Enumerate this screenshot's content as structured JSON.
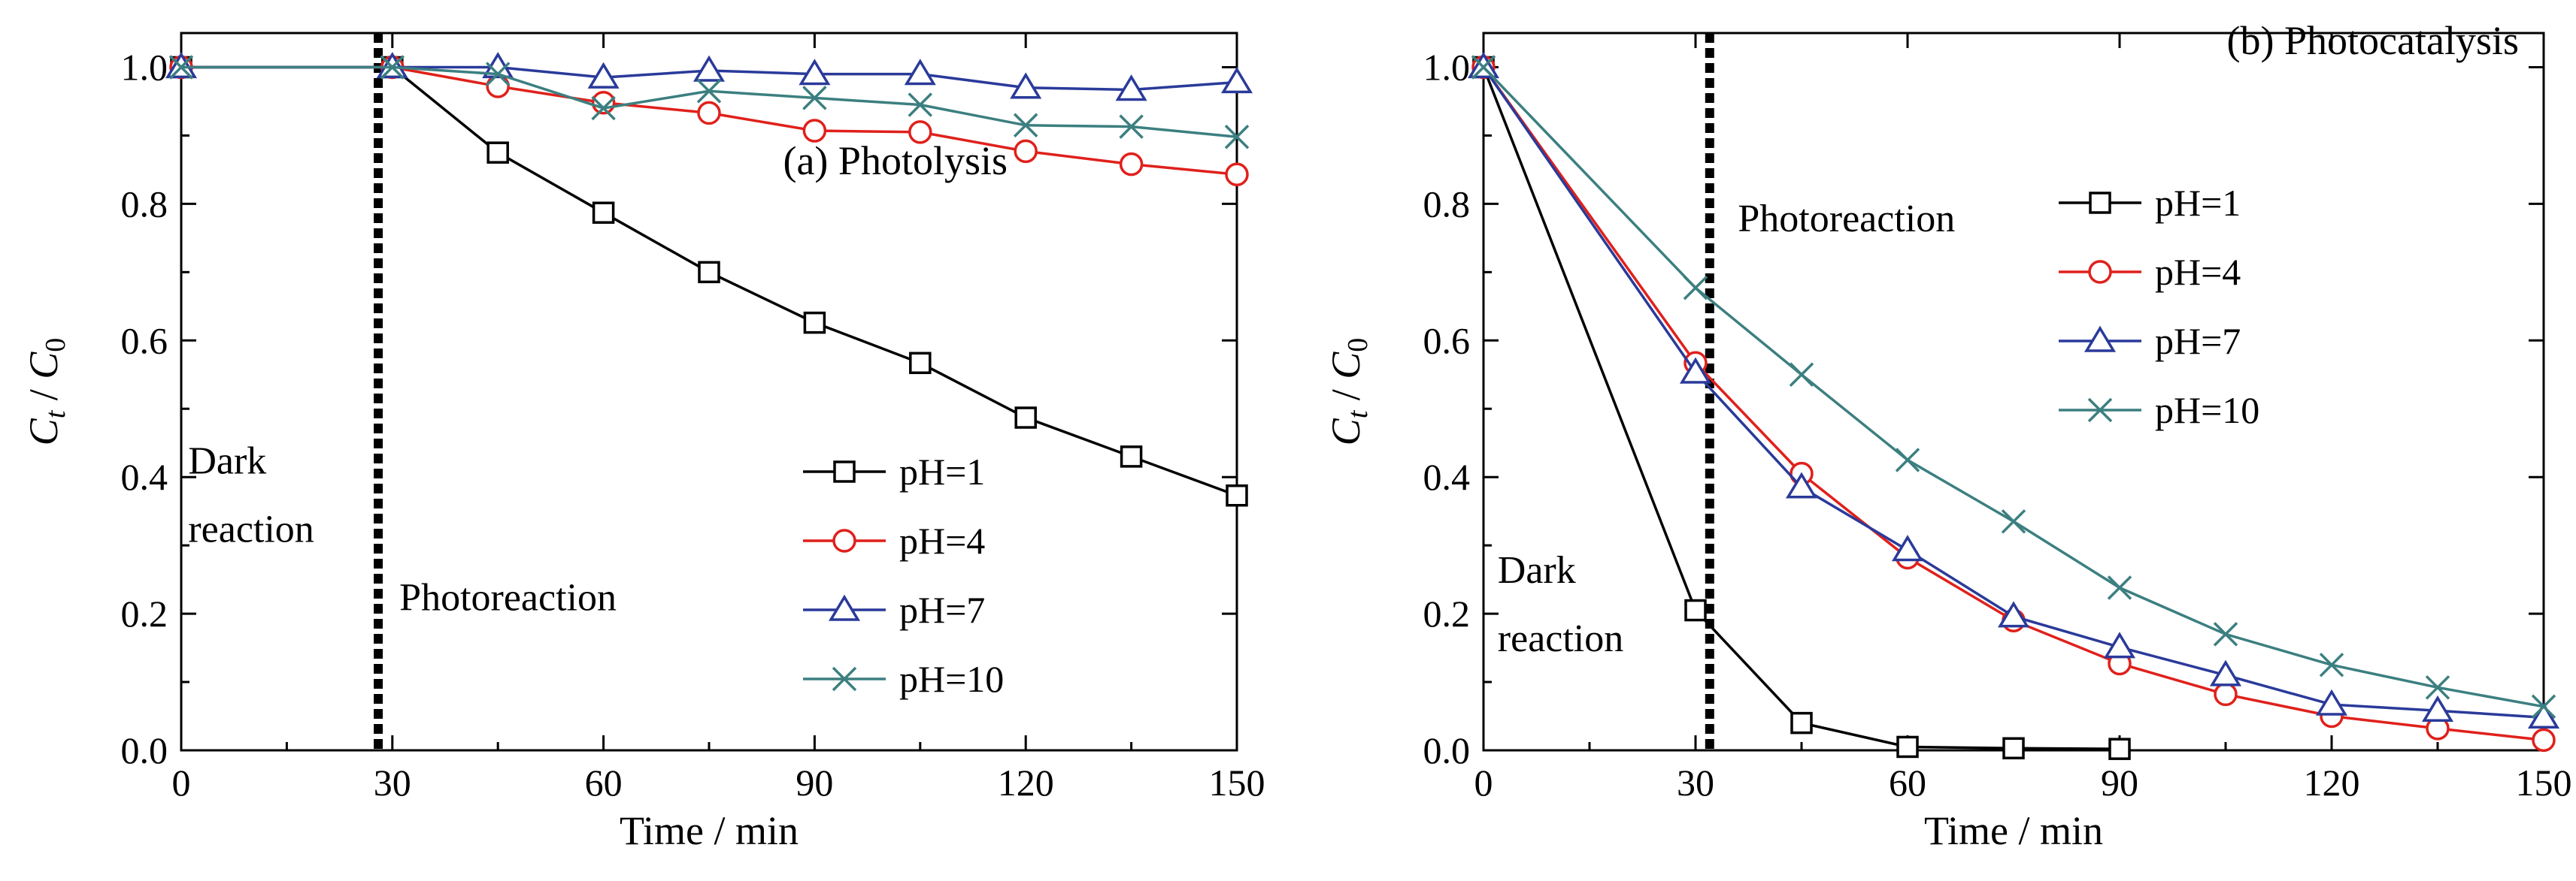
{
  "chart_data": [
    {
      "type": "line",
      "title": "(a) Photolysis",
      "xlabel": "Time / min",
      "ylabel_main": "C",
      "ylabel_main_sub": "t",
      "ylabel_sep": " / ",
      "ylabel_ref": "C",
      "ylabel_ref_sub": "0",
      "xlim": [
        0,
        150
      ],
      "ylim": [
        0,
        1.05
      ],
      "xticks": [
        0,
        30,
        60,
        90,
        120,
        150
      ],
      "xtick_labels": [
        "0",
        "30",
        "60",
        "90",
        "120",
        "150"
      ],
      "yticks": [
        0,
        0.2,
        0.4,
        0.6,
        0.8,
        1.0
      ],
      "ytick_labels": [
        "0.0",
        "0.2",
        "0.4",
        "0.6",
        "0.8",
        "1.0"
      ],
      "divider_x": 28,
      "annotations": [
        {
          "text": "Dark",
          "x": 1,
          "y": 0.405
        },
        {
          "text": "reaction",
          "x": 1,
          "y": 0.305
        },
        {
          "text": "Photoreaction",
          "x": 31,
          "y": 0.205
        }
      ],
      "legend_position": "bottom-right",
      "series": [
        {
          "name": "pH=1",
          "color": "#000000",
          "marker": "square",
          "x": [
            0,
            30,
            45,
            60,
            75,
            90,
            105,
            120,
            135,
            150
          ],
          "y": [
            1.0,
            1.0,
            0.875,
            0.787,
            0.7,
            0.626,
            0.567,
            0.487,
            0.43,
            0.373
          ]
        },
        {
          "name": "pH=4",
          "color": "#e0201b",
          "marker": "circle",
          "x": [
            0,
            30,
            45,
            60,
            75,
            90,
            105,
            120,
            135,
            150
          ],
          "y": [
            1.0,
            1.0,
            0.972,
            0.948,
            0.933,
            0.907,
            0.905,
            0.877,
            0.858,
            0.843
          ]
        },
        {
          "name": "pH=7",
          "color": "#2a3a9a",
          "marker": "triangle",
          "x": [
            0,
            30,
            45,
            60,
            75,
            90,
            105,
            120,
            135,
            150
          ],
          "y": [
            1.0,
            1.0,
            1.0,
            0.985,
            0.995,
            0.99,
            0.99,
            0.97,
            0.967,
            0.978
          ]
        },
        {
          "name": "pH=10",
          "color": "#3c7f80",
          "marker": "x",
          "x": [
            0,
            30,
            45,
            60,
            75,
            90,
            105,
            120,
            135,
            150
          ],
          "y": [
            1.0,
            1.0,
            0.99,
            0.94,
            0.965,
            0.955,
            0.945,
            0.915,
            0.913,
            0.898
          ]
        }
      ]
    },
    {
      "type": "line",
      "title": "(b) Photocatalysis",
      "xlabel": "Time / min",
      "ylabel_main": "C",
      "ylabel_main_sub": "t",
      "ylabel_sep": " / ",
      "ylabel_ref": "C",
      "ylabel_ref_sub": "0",
      "xlim": [
        0,
        150
      ],
      "ylim": [
        0,
        1.05
      ],
      "xticks": [
        0,
        30,
        60,
        90,
        120,
        150
      ],
      "xtick_labels": [
        "0",
        "30",
        "60",
        "90",
        "120",
        "150"
      ],
      "yticks": [
        0,
        0.2,
        0.4,
        0.6,
        0.8,
        1.0
      ],
      "ytick_labels": [
        "0.0",
        "0.2",
        "0.4",
        "0.6",
        "0.8",
        "1.0"
      ],
      "divider_x": 32,
      "annotations": [
        {
          "text": "Dark",
          "x": 2,
          "y": 0.245
        },
        {
          "text": "reaction",
          "x": 2,
          "y": 0.145
        },
        {
          "text": "Photoreaction",
          "x": 36,
          "y": 0.76
        }
      ],
      "legend_position": "center-right",
      "series": [
        {
          "name": "pH=1",
          "color": "#000000",
          "marker": "square",
          "x": [
            0,
            30,
            45,
            60,
            75,
            90
          ],
          "y": [
            1.0,
            0.205,
            0.04,
            0.005,
            0.003,
            0.002
          ]
        },
        {
          "name": "pH=4",
          "color": "#e0201b",
          "marker": "circle",
          "x": [
            0,
            30,
            45,
            60,
            75,
            90,
            105,
            120,
            135,
            150
          ],
          "y": [
            1.0,
            0.567,
            0.405,
            0.282,
            0.19,
            0.127,
            0.082,
            0.05,
            0.032,
            0.015
          ]
        },
        {
          "name": "pH=7",
          "color": "#2a3a9a",
          "marker": "triangle",
          "x": [
            0,
            30,
            45,
            60,
            75,
            90,
            105,
            120,
            135,
            150
          ],
          "y": [
            1.0,
            0.553,
            0.385,
            0.293,
            0.196,
            0.151,
            0.11,
            0.067,
            0.058,
            0.048
          ]
        },
        {
          "name": "pH=10",
          "color": "#3c7f80",
          "marker": "x",
          "x": [
            0,
            30,
            45,
            60,
            75,
            90,
            105,
            120,
            135,
            150
          ],
          "y": [
            1.0,
            0.677,
            0.55,
            0.425,
            0.335,
            0.238,
            0.17,
            0.125,
            0.092,
            0.064
          ]
        }
      ]
    }
  ]
}
